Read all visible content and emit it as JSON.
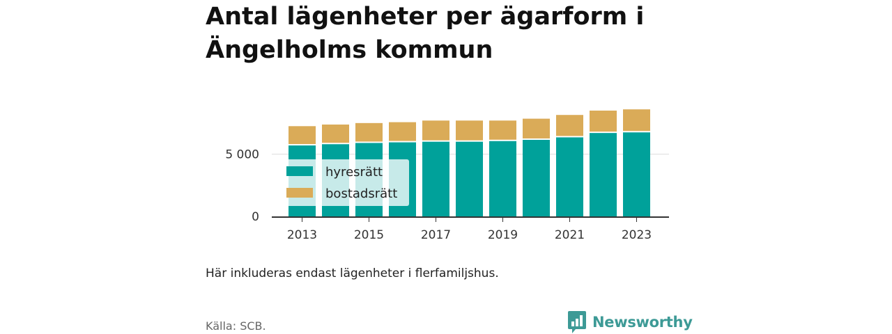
{
  "title": "Antal lägenheter per ägarform i Ängelholms kommun",
  "note": "Här inkluderas endast lägenheter i flerfamiljshus.",
  "source": "Källa: SCB.",
  "brand": {
    "name": "Newsworthy",
    "icon": "newsworthy-logo-icon",
    "color": "#3d9a96"
  },
  "chart_data": {
    "type": "bar",
    "stacked": true,
    "categories": [
      "2013",
      "2014",
      "2015",
      "2016",
      "2017",
      "2018",
      "2019",
      "2020",
      "2021",
      "2022",
      "2023"
    ],
    "x_tick_labels": [
      "2013",
      "2015",
      "2017",
      "2019",
      "2021",
      "2023"
    ],
    "y_tick_labels": [
      "0",
      "5 000"
    ],
    "y_ticks": [
      0,
      5000
    ],
    "ylim": [
      0,
      9000
    ],
    "grid": true,
    "legend_position": "top-left",
    "series": [
      {
        "name": "hyresrätt",
        "color": "#00a19a",
        "values": [
          5700,
          5800,
          5900,
          5950,
          6000,
          6000,
          6050,
          6150,
          6350,
          6700,
          6750
        ]
      },
      {
        "name": "bostadsrätt",
        "color": "#daab58",
        "values": [
          1550,
          1580,
          1600,
          1620,
          1700,
          1700,
          1650,
          1700,
          1800,
          1800,
          1850
        ]
      }
    ]
  }
}
